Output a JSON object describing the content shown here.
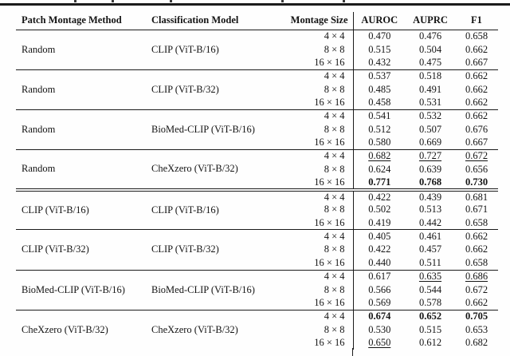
{
  "table": {
    "headers": [
      "Patch Montage Method",
      "Classification Model",
      "Montage Size",
      "AUROC",
      "AUPRC",
      "F1"
    ],
    "groups": [
      {
        "method": "Random",
        "model": "CLIP (ViT-B/16)",
        "separator": "single",
        "rows": [
          {
            "size": "4 × 4",
            "metrics": [
              {
                "v": "0.470",
                "s": "n"
              },
              {
                "v": "0.476",
                "s": "n"
              },
              {
                "v": "0.658",
                "s": "n"
              }
            ]
          },
          {
            "size": "8 × 8",
            "metrics": [
              {
                "v": "0.515",
                "s": "n"
              },
              {
                "v": "0.504",
                "s": "n"
              },
              {
                "v": "0.662",
                "s": "n"
              }
            ]
          },
          {
            "size": "16 × 16",
            "metrics": [
              {
                "v": "0.432",
                "s": "n"
              },
              {
                "v": "0.475",
                "s": "n"
              },
              {
                "v": "0.667",
                "s": "n"
              }
            ]
          }
        ]
      },
      {
        "method": "Random",
        "model": "CLIP (ViT-B/32)",
        "separator": "single",
        "rows": [
          {
            "size": "4 × 4",
            "metrics": [
              {
                "v": "0.537",
                "s": "n"
              },
              {
                "v": "0.518",
                "s": "n"
              },
              {
                "v": "0.662",
                "s": "n"
              }
            ]
          },
          {
            "size": "8 × 8",
            "metrics": [
              {
                "v": "0.485",
                "s": "n"
              },
              {
                "v": "0.491",
                "s": "n"
              },
              {
                "v": "0.662",
                "s": "n"
              }
            ]
          },
          {
            "size": "16 × 16",
            "metrics": [
              {
                "v": "0.458",
                "s": "n"
              },
              {
                "v": "0.531",
                "s": "n"
              },
              {
                "v": "0.662",
                "s": "n"
              }
            ]
          }
        ]
      },
      {
        "method": "Random",
        "model": "BioMed-CLIP (ViT-B/16)",
        "separator": "single",
        "rows": [
          {
            "size": "4 × 4",
            "metrics": [
              {
                "v": "0.541",
                "s": "n"
              },
              {
                "v": "0.532",
                "s": "n"
              },
              {
                "v": "0.662",
                "s": "n"
              }
            ]
          },
          {
            "size": "8 × 8",
            "metrics": [
              {
                "v": "0.512",
                "s": "n"
              },
              {
                "v": "0.507",
                "s": "n"
              },
              {
                "v": "0.676",
                "s": "n"
              }
            ]
          },
          {
            "size": "16 × 16",
            "metrics": [
              {
                "v": "0.580",
                "s": "n"
              },
              {
                "v": "0.669",
                "s": "n"
              },
              {
                "v": "0.667",
                "s": "n"
              }
            ]
          }
        ]
      },
      {
        "method": "Random",
        "model": "CheXzero (ViT-B/32)",
        "separator": "single",
        "rows": [
          {
            "size": "4 × 4",
            "metrics": [
              {
                "v": "0.682",
                "s": "u"
              },
              {
                "v": "0.727",
                "s": "u"
              },
              {
                "v": "0.672",
                "s": "u"
              }
            ]
          },
          {
            "size": "8 × 8",
            "metrics": [
              {
                "v": "0.624",
                "s": "n"
              },
              {
                "v": "0.639",
                "s": "n"
              },
              {
                "v": "0.656",
                "s": "n"
              }
            ]
          },
          {
            "size": "16 × 16",
            "metrics": [
              {
                "v": "0.771",
                "s": "b"
              },
              {
                "v": "0.768",
                "s": "b"
              },
              {
                "v": "0.730",
                "s": "b"
              }
            ]
          }
        ]
      },
      {
        "method": "CLIP (ViT-B/16)",
        "model": "CLIP (ViT-B/16)",
        "separator": "double",
        "rows": [
          {
            "size": "4 × 4",
            "metrics": [
              {
                "v": "0.422",
                "s": "n"
              },
              {
                "v": "0.439",
                "s": "n"
              },
              {
                "v": "0.681",
                "s": "n"
              }
            ]
          },
          {
            "size": "8 × 8",
            "metrics": [
              {
                "v": "0.502",
                "s": "n"
              },
              {
                "v": "0.513",
                "s": "n"
              },
              {
                "v": "0.671",
                "s": "n"
              }
            ]
          },
          {
            "size": "16 × 16",
            "metrics": [
              {
                "v": "0.419",
                "s": "n"
              },
              {
                "v": "0.442",
                "s": "n"
              },
              {
                "v": "0.658",
                "s": "n"
              }
            ]
          }
        ]
      },
      {
        "method": "CLIP (ViT-B/32)",
        "model": "CLIP (ViT-B/32)",
        "separator": "single",
        "rows": [
          {
            "size": "4 × 4",
            "metrics": [
              {
                "v": "0.405",
                "s": "n"
              },
              {
                "v": "0.461",
                "s": "n"
              },
              {
                "v": "0.662",
                "s": "n"
              }
            ]
          },
          {
            "size": "8 × 8",
            "metrics": [
              {
                "v": "0.422",
                "s": "n"
              },
              {
                "v": "0.457",
                "s": "n"
              },
              {
                "v": "0.662",
                "s": "n"
              }
            ]
          },
          {
            "size": "16 × 16",
            "metrics": [
              {
                "v": "0.440",
                "s": "n"
              },
              {
                "v": "0.511",
                "s": "n"
              },
              {
                "v": "0.658",
                "s": "n"
              }
            ]
          }
        ]
      },
      {
        "method": "BioMed-CLIP (ViT-B/16)",
        "model": "BioMed-CLIP (ViT-B/16)",
        "separator": "single",
        "rows": [
          {
            "size": "4 × 4",
            "metrics": [
              {
                "v": "0.617",
                "s": "n"
              },
              {
                "v": "0.635",
                "s": "u"
              },
              {
                "v": "0.686",
                "s": "u"
              }
            ]
          },
          {
            "size": "8 × 8",
            "metrics": [
              {
                "v": "0.566",
                "s": "n"
              },
              {
                "v": "0.544",
                "s": "n"
              },
              {
                "v": "0.672",
                "s": "n"
              }
            ]
          },
          {
            "size": "16 × 16",
            "metrics": [
              {
                "v": "0.569",
                "s": "n"
              },
              {
                "v": "0.578",
                "s": "n"
              },
              {
                "v": "0.662",
                "s": "n"
              }
            ]
          }
        ]
      },
      {
        "method": "CheXzero (ViT-B/32)",
        "model": "CheXzero (ViT-B/32)",
        "separator": "single",
        "rows": [
          {
            "size": "4 × 4",
            "metrics": [
              {
                "v": "0.674",
                "s": "b"
              },
              {
                "v": "0.652",
                "s": "b"
              },
              {
                "v": "0.705",
                "s": "b"
              }
            ]
          },
          {
            "size": "8 × 8",
            "metrics": [
              {
                "v": "0.530",
                "s": "n"
              },
              {
                "v": "0.515",
                "s": "n"
              },
              {
                "v": "0.653",
                "s": "n"
              }
            ]
          },
          {
            "size": "16 × 16",
            "metrics": [
              {
                "v": "0.650",
                "s": "u"
              },
              {
                "v": "0.612",
                "s": "n"
              },
              {
                "v": "0.682",
                "s": "n"
              }
            ]
          }
        ]
      }
    ]
  }
}
